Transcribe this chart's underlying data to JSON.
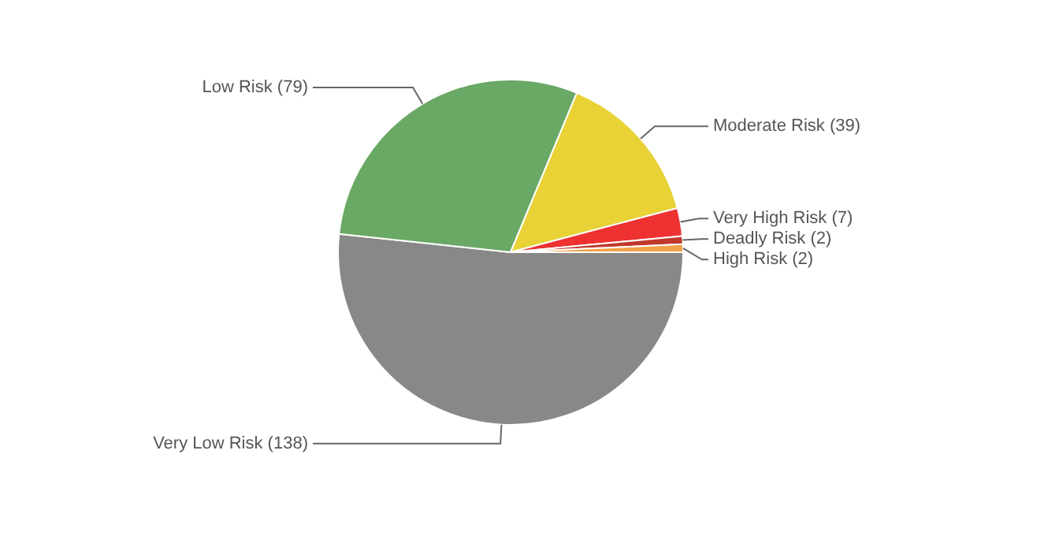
{
  "chart_data": {
    "type": "pie",
    "categories": [
      "Very Low Risk (138)",
      "Low Risk (79)",
      "Moderate Risk (39)",
      "Very High Risk (7)",
      "Deadly Risk (2)",
      "High Risk (2)"
    ],
    "values": [
      138,
      79,
      39,
      7,
      2,
      2
    ],
    "colors": [
      "#888888",
      "#6aa865",
      "#e8d236",
      "#ee3131",
      "#c0392b",
      "#f2a24a"
    ],
    "legend": false
  }
}
